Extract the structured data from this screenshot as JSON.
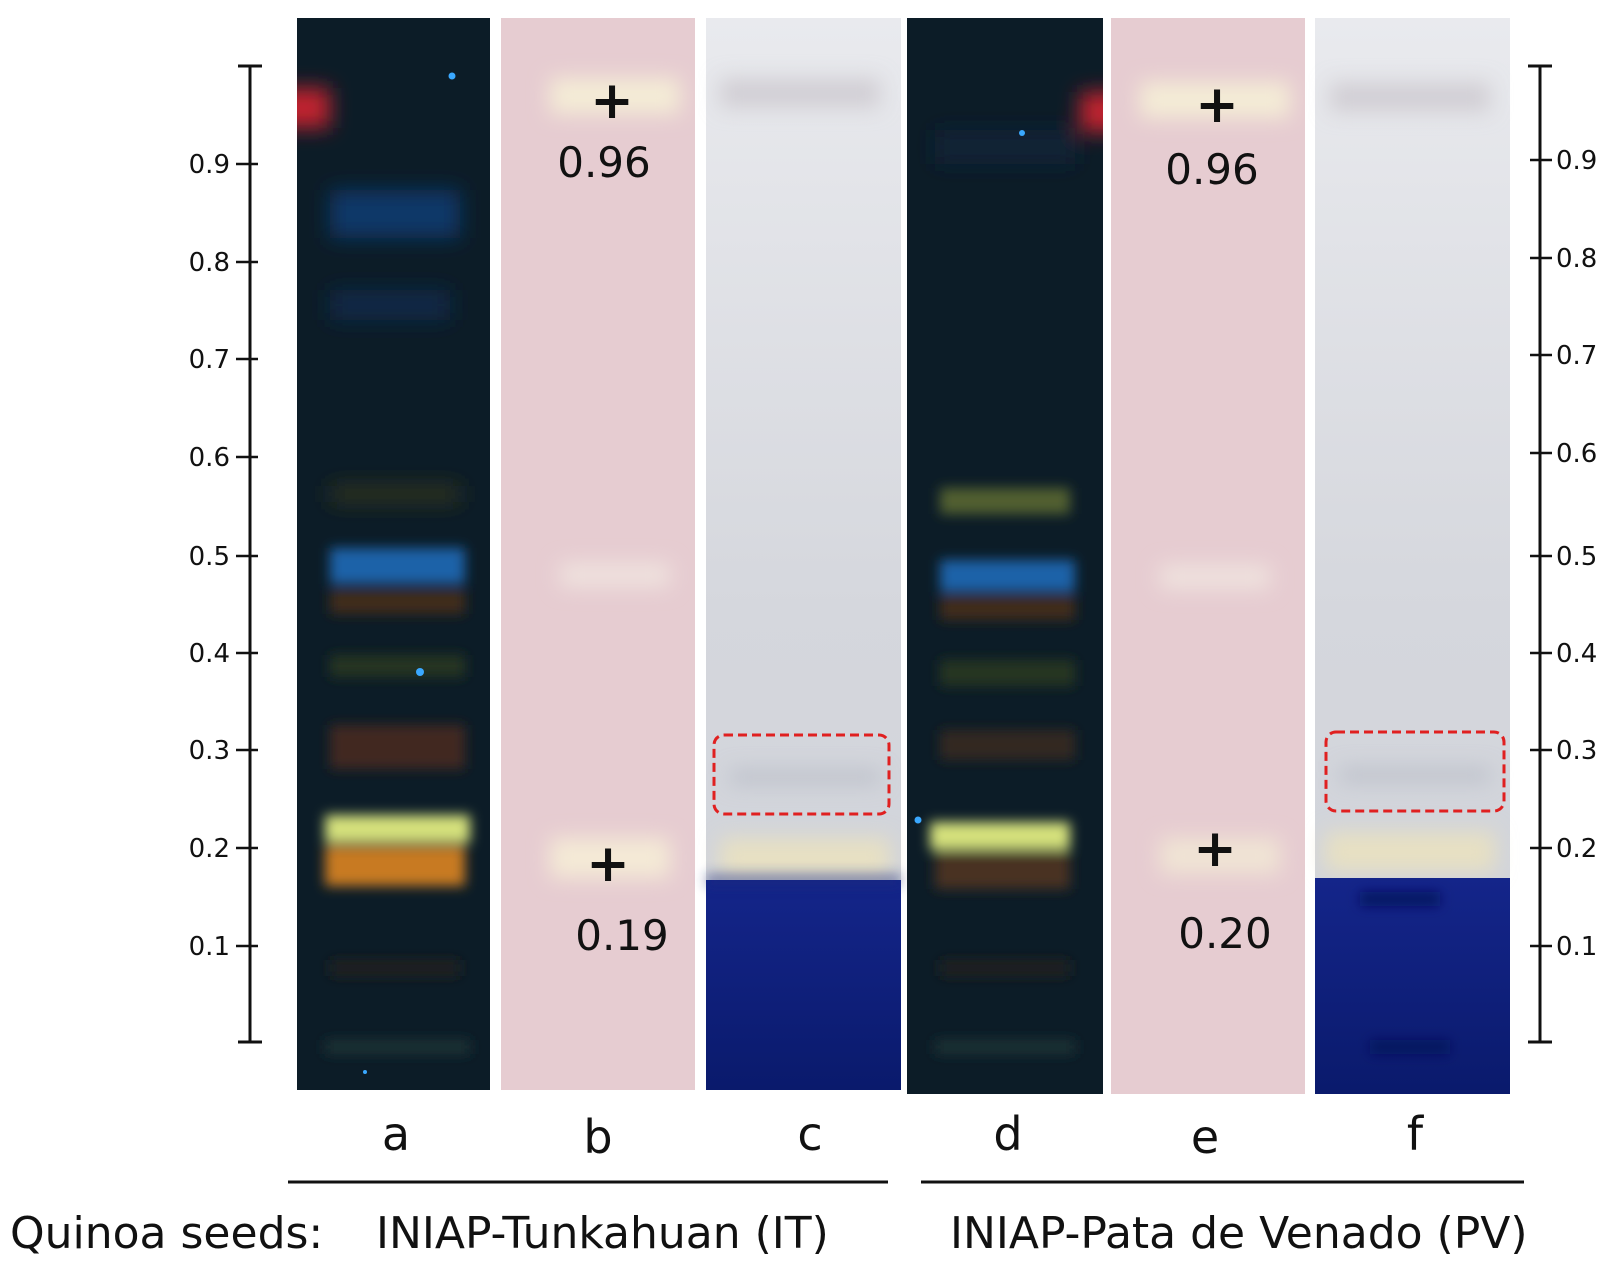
{
  "figure": {
    "scale_ticks": [
      "0.9",
      "0.8",
      "0.7",
      "0.6",
      "0.5",
      "0.4",
      "0.3",
      "0.2",
      "0.1"
    ],
    "lanes": [
      {
        "label": "a",
        "type": "uv-366nm"
      },
      {
        "label": "b",
        "type": "spray-reagent"
      },
      {
        "label": "c",
        "type": "bioautography"
      },
      {
        "label": "d",
        "type": "uv-366nm"
      },
      {
        "label": "e",
        "type": "spray-reagent"
      },
      {
        "label": "f",
        "type": "bioautography"
      }
    ],
    "annotations": {
      "b_top_rf": "0.96",
      "b_bottom_rf": "0.19",
      "e_top_rf": "0.96",
      "e_bottom_rf": "0.20",
      "plus_symbol": "+"
    },
    "caption": {
      "prefix": "Quinoa seeds:",
      "group1": "INIAP-Tunkahuan (IT)",
      "group2": "INIAP-Pata de Venado (PV)"
    },
    "colors": {
      "uv_bg": "#0b1a22",
      "spray_bg": "#e6ccd1",
      "bio_bg": "#d9dce3",
      "bio_blue": "#0a1e78",
      "highlight_box": "#e02020"
    }
  }
}
